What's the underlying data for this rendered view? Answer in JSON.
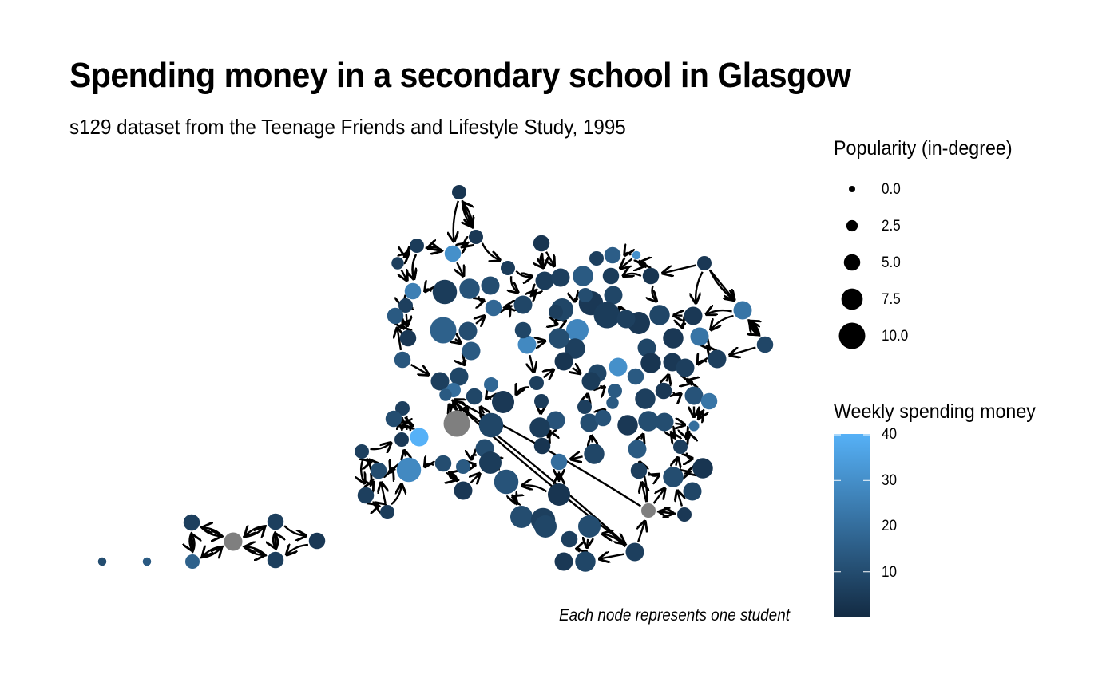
{
  "title": "Spending money in a secondary school in Glasgow",
  "subtitle": "s129 dataset from the Teenage Friends and Lifestyle Study, 1995",
  "caption": "Each node represents one student",
  "chart_data": {
    "type": "network",
    "title": "Spending money in a secondary school in Glasgow",
    "subtitle": "s129 dataset from the Teenage Friends and Lifestyle Study, 1995",
    "caption": "Each node represents one student",
    "size_legend": {
      "title": "Popularity (in-degree)",
      "values": [
        0.0,
        2.5,
        5.0,
        7.5,
        10.0
      ],
      "labels": [
        "0.0",
        "2.5",
        "5.0",
        "7.5",
        "10.0"
      ]
    },
    "color_legend": {
      "title": "Weekly spending money",
      "min": 0,
      "max": 40,
      "ticks": [
        10,
        20,
        30,
        40
      ],
      "tick_labels": [
        "10",
        "20",
        "30",
        "40"
      ],
      "low_color": "#132B43",
      "high_color": "#56B1F7",
      "na_color": "#7F7F7F"
    },
    "edge_color": "#000000"
  }
}
